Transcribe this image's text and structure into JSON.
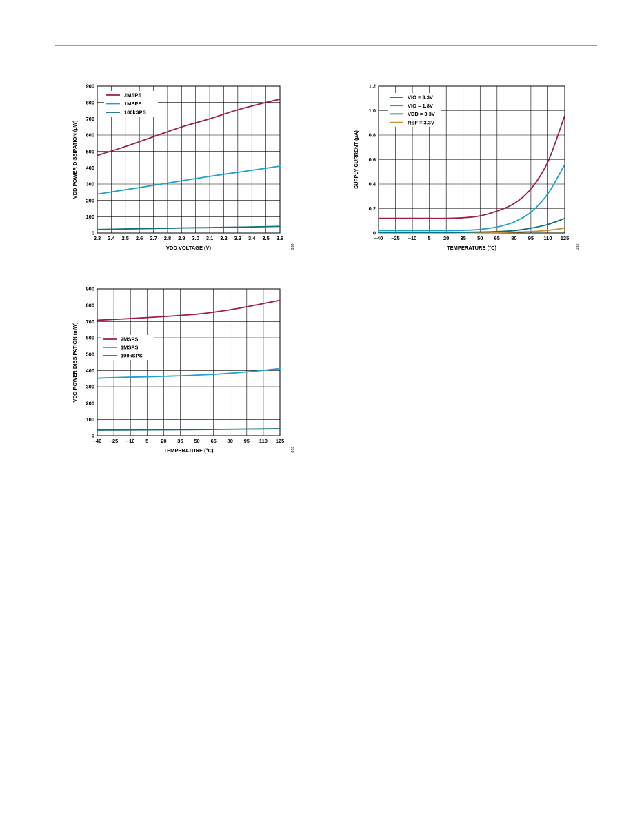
{
  "page": {
    "header_rule": true
  },
  "chart_data": [
    {
      "id": "vdd-power-vs-voltage",
      "type": "line",
      "title": "",
      "xlabel": "VDD VOLTAGE (V)",
      "ylabel": "VDD POWER DISSIPATION (µW)",
      "xlim": [
        2.3,
        3.6
      ],
      "ylim": [
        0,
        900
      ],
      "xticks": [
        2.3,
        2.4,
        2.5,
        2.6,
        2.7,
        2.8,
        2.9,
        3.0,
        3.1,
        3.2,
        3.3,
        3.4,
        3.5,
        3.6
      ],
      "xtick_labels": [
        "2.3",
        "2.4",
        "2.5",
        "2.6",
        "2.7",
        "2.8",
        "2.9",
        "3.0",
        "3.1",
        "3.2",
        "3.3",
        "3.4",
        "3.5",
        "3.6"
      ],
      "yticks": [
        0,
        100,
        200,
        300,
        400,
        500,
        600,
        700,
        800,
        900
      ],
      "ytick_labels": [
        "0",
        "100",
        "200",
        "300",
        "400",
        "500",
        "600",
        "700",
        "800",
        "900"
      ],
      "grid": true,
      "legend_position": "top-left",
      "figure_code": "030",
      "series": [
        {
          "name": "2MSPS",
          "color": "#9c1d4e",
          "x": [
            2.3,
            2.5,
            2.7,
            2.9,
            3.1,
            3.3,
            3.5,
            3.6
          ],
          "y": [
            475,
            530,
            590,
            650,
            700,
            755,
            800,
            820
          ]
        },
        {
          "name": "1MSPS",
          "color": "#1ea2cc",
          "x": [
            2.3,
            2.5,
            2.7,
            2.9,
            3.1,
            3.3,
            3.5,
            3.6
          ],
          "y": [
            238,
            265,
            292,
            320,
            347,
            372,
            397,
            410
          ]
        },
        {
          "name": "100kSPS",
          "color": "#0e6f78",
          "x": [
            2.3,
            2.5,
            2.7,
            2.9,
            3.1,
            3.3,
            3.5,
            3.6
          ],
          "y": [
            22,
            25,
            28,
            31,
            33,
            36,
            39,
            41
          ]
        }
      ]
    },
    {
      "id": "supply-current-vs-temperature",
      "type": "line",
      "title": "",
      "xlabel": "TEMPERATURE (°C)",
      "ylabel": "SUPPLY CURRENT (µA)",
      "xlim": [
        -40,
        125
      ],
      "ylim": [
        0,
        1.2
      ],
      "xticks": [
        -40,
        -25,
        -10,
        5,
        20,
        35,
        50,
        65,
        80,
        95,
        110,
        125
      ],
      "xtick_labels": [
        "–40",
        "–25",
        "–10",
        "5",
        "20",
        "35",
        "50",
        "65",
        "80",
        "95",
        "110",
        "125"
      ],
      "yticks": [
        0,
        0.2,
        0.4,
        0.6,
        0.8,
        1.0,
        1.2
      ],
      "ytick_labels": [
        "0",
        "0.2",
        "0.4",
        "0.6",
        "0.8",
        "1.0",
        "1.2"
      ],
      "grid": true,
      "legend_position": "top-left",
      "figure_code": "032",
      "series": [
        {
          "name": "VIO = 3.3V",
          "color": "#9c1d4e",
          "x": [
            -40,
            -25,
            -10,
            5,
            20,
            35,
            50,
            65,
            80,
            95,
            110,
            125
          ],
          "y": [
            0.12,
            0.12,
            0.12,
            0.12,
            0.12,
            0.125,
            0.14,
            0.18,
            0.24,
            0.36,
            0.58,
            0.96
          ]
        },
        {
          "name": "VIO = 1.8V",
          "color": "#1ea2cc",
          "x": [
            -40,
            -25,
            -10,
            5,
            20,
            35,
            50,
            65,
            80,
            95,
            110,
            125
          ],
          "y": [
            0.02,
            0.02,
            0.02,
            0.02,
            0.02,
            0.022,
            0.03,
            0.05,
            0.09,
            0.17,
            0.32,
            0.56
          ]
        },
        {
          "name": "VDD = 3.3V",
          "color": "#0e6f78",
          "x": [
            -40,
            -25,
            -10,
            5,
            20,
            35,
            50,
            65,
            80,
            95,
            110,
            125
          ],
          "y": [
            0.005,
            0.005,
            0.005,
            0.005,
            0.005,
            0.006,
            0.008,
            0.012,
            0.02,
            0.04,
            0.07,
            0.12
          ]
        },
        {
          "name": "REF = 3.3V",
          "color": "#c8903a",
          "x": [
            -40,
            -25,
            -10,
            5,
            20,
            35,
            50,
            65,
            80,
            95,
            110,
            125
          ],
          "y": [
            0.001,
            0.001,
            0.001,
            0.001,
            0.001,
            0.002,
            0.003,
            0.004,
            0.007,
            0.012,
            0.022,
            0.04
          ]
        }
      ]
    },
    {
      "id": "vdd-power-vs-temperature",
      "type": "line",
      "title": "",
      "xlabel": "TEMPERATURE (°C)",
      "ylabel": "VDD POWER DISSIPATION (mW)",
      "xlim": [
        -40,
        125
      ],
      "ylim": [
        0,
        900
      ],
      "xticks": [
        -40,
        -25,
        -10,
        5,
        20,
        35,
        50,
        65,
        80,
        95,
        110,
        125
      ],
      "xtick_labels": [
        "–40",
        "–25",
        "–10",
        "5",
        "20",
        "35",
        "50",
        "65",
        "80",
        "95",
        "110",
        "125"
      ],
      "yticks": [
        0,
        100,
        200,
        300,
        400,
        500,
        600,
        700,
        800,
        900
      ],
      "ytick_labels": [
        "0",
        "100",
        "200",
        "300",
        "400",
        "500",
        "600",
        "700",
        "800",
        "900"
      ],
      "grid": true,
      "legend_position": "middle-left",
      "figure_code": "031",
      "series": [
        {
          "name": "2MSPS",
          "color": "#9c1d4e",
          "x": [
            -40,
            -25,
            -10,
            5,
            20,
            35,
            50,
            65,
            80,
            95,
            110,
            125
          ],
          "y": [
            708,
            713,
            718,
            724,
            730,
            737,
            745,
            757,
            772,
            790,
            810,
            830
          ]
        },
        {
          "name": "1MSPS",
          "color": "#1ea2cc",
          "x": [
            -40,
            -25,
            -10,
            5,
            20,
            35,
            50,
            65,
            80,
            95,
            110,
            125
          ],
          "y": [
            352,
            356,
            359,
            361,
            364,
            367,
            371,
            376,
            383,
            391,
            401,
            412
          ]
        },
        {
          "name": "100kSPS",
          "color": "#0e6f78",
          "x": [
            -40,
            -25,
            -10,
            5,
            20,
            35,
            50,
            65,
            80,
            95,
            110,
            125
          ],
          "y": [
            34,
            34.5,
            35,
            35.5,
            36,
            36.5,
            37,
            38,
            39,
            40,
            41,
            42
          ]
        }
      ]
    }
  ]
}
